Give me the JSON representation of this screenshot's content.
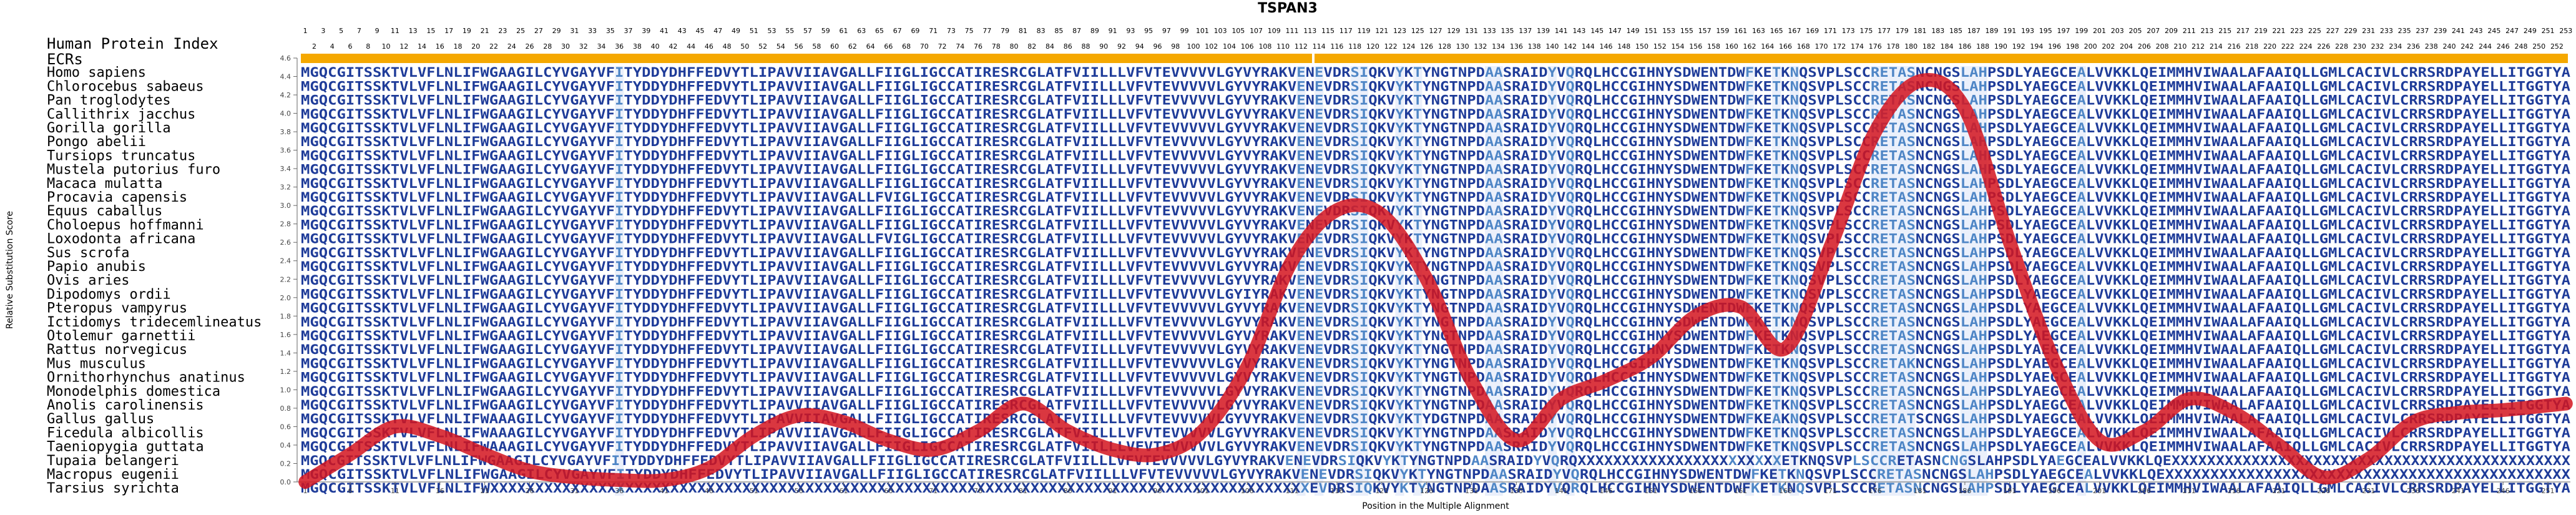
{
  "figure": {
    "title": "TSPAN3",
    "index_label": "Human Protein Index",
    "ecr_label": "ECRs",
    "colors": {
      "conserved": "#1f3c99",
      "variable": "#4f86c6",
      "ecr_bar": "#f5a800",
      "curve": "#d4141e",
      "highlight": "#ffd24d"
    }
  },
  "alignment": {
    "human_index_odd": [
      1,
      3,
      5,
      7,
      9,
      11,
      13,
      15,
      17,
      19,
      21,
      23,
      25,
      27,
      29,
      31,
      33,
      35,
      37,
      39,
      41,
      43,
      45,
      47,
      49,
      51,
      53,
      55,
      57,
      59,
      61,
      63,
      65,
      67,
      69,
      71,
      73,
      75,
      77,
      79,
      81,
      83,
      85,
      87,
      89,
      91,
      93,
      95,
      97,
      99,
      101,
      103,
      105,
      107,
      109,
      111,
      113,
      115,
      117,
      119,
      121,
      123,
      125,
      127,
      129,
      131,
      133,
      135,
      137,
      139,
      141,
      143,
      145,
      147,
      149,
      151,
      153,
      155,
      157,
      159,
      161,
      163,
      165,
      167,
      169,
      171,
      173,
      175,
      177,
      179,
      181,
      183,
      185,
      187,
      189,
      191,
      193,
      195,
      197,
      199,
      201,
      203,
      205,
      207,
      209,
      211,
      213,
      215,
      217,
      219,
      221,
      223,
      225,
      227,
      229,
      231,
      233,
      235,
      237,
      239,
      241,
      243,
      245,
      247,
      249,
      251,
      253
    ],
    "human_index_even": [
      2,
      4,
      6,
      8,
      10,
      12,
      14,
      16,
      18,
      20,
      22,
      24,
      26,
      28,
      30,
      32,
      34,
      36,
      38,
      40,
      42,
      44,
      46,
      48,
      50,
      52,
      54,
      56,
      58,
      60,
      62,
      64,
      66,
      68,
      70,
      72,
      74,
      76,
      78,
      80,
      82,
      84,
      86,
      88,
      90,
      92,
      94,
      96,
      98,
      100,
      102,
      104,
      106,
      108,
      110,
      112,
      114,
      116,
      118,
      120,
      122,
      124,
      126,
      128,
      130,
      132,
      134,
      136,
      138,
      140,
      142,
      144,
      146,
      148,
      150,
      152,
      154,
      156,
      158,
      160,
      162,
      164,
      166,
      168,
      170,
      172,
      174,
      176,
      178,
      180,
      182,
      184,
      186,
      188,
      190,
      192,
      194,
      196,
      198,
      200,
      202,
      204,
      206,
      208,
      210,
      212,
      214,
      216,
      218,
      220,
      222,
      224,
      226,
      228,
      230,
      232,
      234,
      236,
      238,
      240,
      242,
      244,
      246,
      248,
      250,
      252
    ],
    "variable_positions": [
      36,
      112,
      114,
      118,
      119,
      123,
      125,
      133,
      134,
      140,
      142,
      162,
      165,
      167,
      176,
      177,
      178,
      179,
      180,
      186,
      187,
      188,
      199
    ],
    "species": [
      {
        "name": "Homo sapiens",
        "seq": "MGQCGITSSKTVLVFLNLIFWGAAGILCYVGAYVFITYDDYDHFFEDVYTLIPAVVIIAVGALLFIIGLIGCCATIRESRCGLATFVIILLLVFVTEVVVVVLGYVYRAKVENEVDRSIQKVYKTYNGTNPDAASRAIDYVQRQLHCCGIHNYSDWENTDWFKETKNQSVPLSCCRETASNCNGSLAHPSDLYAEGCEALVVKKLQEIMMHVIWAALAFAAIQLLGMLCACIVLCRRSRDPAYELLITGGTYA"
      },
      {
        "name": "Chlorocebus sabaeus",
        "seq": "MGQCGITSSKTVLVFLNLIFWGAAGILCYVGAYVFITYDDYDHFFEDVYTLIPAVVIIAVGALLFIIGLIGCCATIRESRCGLATFVIILLLVFVTEVVVVVLGYVYRAKVENEVDRSIQKVYKTYNGTNPDAASRAIDYVQRQLHCCGIHNYSDWENTDWFKETKNQSVPLSCCRETASNCNGSLAHPSDLYAEGCEALVVKKLQEIMMHVIWAALAFAAIQLLGMLCACIVLCRRSRDPAYELLITGGTYA"
      },
      {
        "name": "Pan troglodytes",
        "seq": "MGQCGITSSKTVLVFLNLIFWGAAGILCYVGAYVFITYDDYDHFFEDVYTLIPAVVIIAVGALLFIIGLIGCCATIRESRCGLATFVIILLLVFVTEVVVVVLGYVYRAKVENEVDRSIQKVYKTYNGTNPDAASRAIDYVQRQLHCCGIHNYSDWENTDWFKETKNQSVPLSCCRETASNCNGSLAHPSDLYAEGCEALVVKKLQEIMMHVIWAALAFAAIQLLGMLCACIVLCRRSRDPAYELLITGGTYA"
      },
      {
        "name": "Callithrix jacchus",
        "seq": "MGQCGITSSKTVLVFLNLIFWGAAGILCYVGAYVFITYDDYDHFFEDVYTLIPAVVIIAVGALLFIIGLIGCCATIRESRCGLATFVIILLLVFVTEVVVVVLGYVYRAKVENEVDRSIQKVYKTYNGTNPDAASRAIDYVQRQLHCCGIHNYSDWENTDWFKETKNQSVPLSCCRETASNCNGSLAHPSDLYAEGCEALVVKKLQEIMMHVIWAALAFAAIQLLGMLCACIVLCRRSRDPAYELLITGGTYA"
      },
      {
        "name": "Gorilla gorilla",
        "seq": "MGQCGITSSKTVLVFLNLIFWGAAGILCYVGAYVFITYDDYDHFFEDVYTLIPAVVIIAVGALLFIIGLIGCCATIRESRCGLATFVIILLLVFVTEVVVVVLGYVYRAKVENEVDRSIQKVYKTYNGTNPDAASRAIDYVQRQLHCCGIHNYSDWENTDWFKETKNQSVPLSCCRETASNCNGSLAHPSDLYAEGCEALVVKKLQEIMMHVIWAALAFAAIQLLGMLCACIVLCRRSRDPAYELLITGGTYA"
      },
      {
        "name": "Pongo abelii",
        "seq": "MGQCGITSSKTVLVFLNLIFWGAAGILCYVGAYVFITYDDYDHFFEDVYTLIPAVVIIAVGALLFIIGLIGCCATIRESRCGLATFVIILLLVFVTEVVVVVLGYVYRAKVENEVDRSIQKVYKTYNGTNPDAASRAIDYVQRQLHCCGIHNYSDWENTDWFKETKNQSVPLSCCRETASNCNGSLAHPSDLYAEGCEALVVKKLQEIMMHVIWAALAFAAIQLLGMLCACIVLCRRSRDPAYELLITGGTYA"
      },
      {
        "name": "Tursiops truncatus",
        "seq": "MGQCGITSSKTVLVFLNLIFWGAAGILCYVGAYVFITYDDYDHFFEDVYTLIPAVVIIAVGALLFIIGLIGCCATIRESRCGLATFVIILLLVFVTEVVVVVLGYVYRAKVENEVDRSIQKVYKTYNGTNPDAASRAIDYVQRQLHCCGIHNYSDWENTDWFKETKNQSVPLSCCRETASNCNGSLAHPSDLYAEGCEALVVKKLQEIMMHVIWAALAFAAIQLLGMLCACIVLCRRSRDPAYELLITGGTYA"
      },
      {
        "name": "Mustela putorius furo",
        "seq": "MGQCGITSSKTVLVFLNLIFWGAAGILCYVGAYVFITYDDYDHFFEDVYTLIPAVVIIAVGALLFIIGLIGCCATIRESRCGLATFVIILLLVFVTEVVVVVLGYVYRAKVENEVDRSIQKVYKTYNGTNPDAASRAIDYVQRQLHCCGIHNYSDWENTDWFKETKNQSVPLSCCRETASNCNGSLAHPSDLYAEGCEALVVKKLQEIMMHVIWAALAFAAIQLLGMLCACIVLCRRSRDPAYELLITGGTYA"
      },
      {
        "name": "Macaca mulatta",
        "seq": "MGQCGITSSKTVLVFLNLIFWGAAGILCYVGAYVFITYDDYDHFFEDVYTLIPAVVIIAVGALLFIIGLIGCCATIRESRCGLATFVIILLLVFVTEVVVVVLGYVYRAKVENEVDRSIQKVYKTYNGTNPDAASRAIDYVQRQLHCCGIHNYSDWENTDWFKETKNQSVPLSCCRETASNCNGSLAHPSDLYAEGCEALVVKKLQEIMMHVIWAALAFAAIQLLGMLCACIVLCRRSRDPAYELLITGGTYA"
      },
      {
        "name": "Procavia capensis",
        "seq": "MGQCGITSSKTVLVFLNLIFWGAAGILCYVGAYVFITYDDYDHFFEDVYTLIPAVVIIAVGALLFVIGLIGCCATIRESRCGLATFVIILLLVFVTEVVVVVLGYVYRAKVENEVDRSIQKVYKTYNGTNPDAASRAIDYVQRQLHCCGIHNYSDWENTDWFKETKNQSVPLSCCRETASNCNGSLAHPSDLYAEGCEALVVKKLQEIMMHVIWAALAFAAIQLLGMLCACIVLCRRSRDPAYELLITGGTYA"
      },
      {
        "name": "Equus caballus",
        "seq": "MGQCGITSSKTVLVFLNLIFWGAAGILCYVGAYVFITYDDYDHFFEDVYTLIPAVVIIAVGALLFIIGLIGCCATIRESRCGLATFVIILLLVFVTEVVVVVLGYVYRAKVENEVDRSIQKVYKTYNGTNPDAASRAIDYVQRQLHCCGIHNYSDWENTDWFKETKNQSVPLSCCRETASNCNGSLAHPSDLYAEGCEALVVKKLQEIMMHVIWAALAFAAIQLLGMLCACIVLCRRSRDPAYELLITGGTYA"
      },
      {
        "name": "Choloepus hoffmanni",
        "seq": "MGQCGITSSKTVLVFLNLIFWGAAGILCYVGAYVFITYDDYDHFFEDVYTLIPAVVIIAVGALLFIIGLIGCCATIRESRCGLATFVIILLLVFVTEVVVVVLGYVYRAKVENEVDRSIQKVYKTYNGTNPDAASRAIDYVQRQLHCCGIHNYSDWENTDWFKETKNQSVPLSCCRETASNCNGSLAHPSDLYAEGCEALVVKKLQEIMMHVIWAALAFAAIQLLGMLCACIVLCRRSRDPAYELLITGGTYA"
      },
      {
        "name": "Loxodonta africana",
        "seq": "MGQCGITSSKTVLVFLNLIFWGAAGILCYVGAYVFITYDDYDHFFEDVYTLIPAVVIIAVGALLFVIGLIGCCATIRESRCGLATFVIILLLVFVTEVVVVVLGYVYRAKVENEVDRSIQKVYKTYNGTNPDAASRAIDYVQRQLHCCGIHNYSDWENTDWFKETKNQSVPLSCCRETASNCNGSLAHPSDLYAEGCEALVVKKLQEIMMHVIWAALAFAAIQLLGMLCACIVLCRRSRDPAYELLITGGTYA"
      },
      {
        "name": "Sus scrofa",
        "seq": "MGQCGITSSKTVLVFLNLIFWGAAGILCYVGAYVFITYDDYDHFFEDVYTLIPAVVIIAVGALLFIIGLIGCCATIRESRCGLATFVIILLLVFVTEVVVVVLGYVYRAKVENEVDRSIQKVYKTYNGTNPDAASRAIDYVQRQLHCCGIHNYSDWENTDWFKETKNQSVPLSCCRETASNCNGSLAHPSDLYAEGCEALVVKKLQEIMMHVIWAALAFAAIQLLGMLCACIVLCRRSRDPAYELLITGGTYA"
      },
      {
        "name": "Papio anubis",
        "seq": "MGQCGITSSKTVLVFLNLIFWGAAGILCYVGAYVFITYDDYDHFFEDVYTLIPAVVIIAVGALLFIIGLIGCCATIRESRCGLATFVIILLLVFVTEVVVVVLGYVYRAKVENEVDRSIQKVYKTYNGTNPDAASRAIDYVQRQLHCCGIHNYSDWENTDWFKETKNQSVPLSCCRETASNCNGSLAHPSDLYAEGCEALVVKKLQEIMMHVIWAALAFAAIQLLGMLCACIVLCRRSRDPAYELLITGGTYA"
      },
      {
        "name": "Ovis aries",
        "seq": "MGQCGITSSKTVLVFLNLIFWGAAGILCYVGAYVFITYDDYDHFFEDVYTLIPAVVIIAVGALLFIIGLIGCCATIRESRCGLATFVIILLLVFVTEVVVVVLGYVYRAKVENEVDRSIQKVYKTYNGTNPDAASRAIDYVQRQLHCCGIHNYSDWENTDWFKETKNQSVPLSCCRETASNCNGSLAHPSDLYAEGCEALVVKKLQEIMMHVIWAALAFAAIQLLGMLCACIVLCRRSRDPAYELLITGGTYA"
      },
      {
        "name": "Dipodomys ordii",
        "seq": "MGQCGITSSKTVLVFLNLIFWGAAGILCYVGAYVFITYDDYDHFFEDVYTLIPAVVIIAVGALLFIIGLIGCCATIRESRCGLATFVIILLLVFVTEVVVVVLGYIYRAKVENEVDRSIQKVYKTYNGTNPDAASRAIDYVQRQLHCCGIHNYSDWENTDWFKETKNQSVPLSCCRETASNCNGSLAHPSDLYAEGCEALVVKKLQEIMMHVIWAALAFAAIQLLGMLCACIVLCRRSRDPAYELLITGGTYA"
      },
      {
        "name": "Pteropus vampyrus",
        "seq": "MGQCGITSSKTVLVFLNLIFWGAAGILCYVGAYVFITYDDYDHFFEDVYTLIPAVVIIAVGALLFIIGLIGCCATIRESRCGLATFVIILLLVFVTEVVVVVLGYVYRAKVENEVDRSIQKVYKTYNGTNPDAASRAIDYVQRQLHCCGIHNYSDWENTDWFKETKNQSVPLSCCRETASNCNGSLAHPSDLYAEGCEALVVKKLQEIMMHVIWAALAFAAIQLLGMLCACIVLCRRSRDPAYELLITGGTYA"
      },
      {
        "name": "Ictidomys tridecemlineatus",
        "seq": "MGQCGITSSKTVLVFLNLIFWGAAGILCYVGAYVFITYDDYDHFFEDVYTLIPAVVIIAVGALLFIIGLIGCCATIRESRCGLATFVIILLLVFVTEVVVVVLGYVYRAKVENEVDRSIQKVYKTYNGTNPDAASRAIDYVQRQLHCCGIHNYSDWENTDWFKETKNQSVPLSCCRETASNCNGSLAHPSDLYAEGCEALVVKKLQEIMMHVIWAALAFAAIQLLGMLCACIVLCRRSRDPAYELLITGGTYA"
      },
      {
        "name": "Otolemur garnettii",
        "seq": "MGQCGITSSKTVLVFLNLIFWGAAGILCYVGAYVFITYDDYDHFFEDVYTLIPAVVIIAVGALLFIIGLIGCCATIRESRCGLATFVIILLLVFVTEVVVVVLGYVYRAKVENEVDRSIQKVYKTYNGTNPDAASRAIDYVQRQLHCCGIHNYSDWENTDWFKETKNQSVPLSCCRETASNCNGSLAHPSDLYAEGCEALVVKKLQEIMMHVIWAALAFAAIQLLGMLCACIVLCRRSRDPAYELLITGGTYA"
      },
      {
        "name": "Rattus norvegicus",
        "seq": "MGQCGITSSKTVLVFLNLIFWGAAGILCYVGAYVFITYDDYDHFFEDVYTLIPAVVIIAVGALLFIIGLIGCCATIRESRCGLATFVIILLLVFVTEVVVVVLGYVYRAKVENEVDRSIQKVYKTYNGTNPDAASRAIDYVQRQLHCCGIHNYSDWENTDWFKETKNQSVPLSCCRETASNCNGSLAHPSDLYAEGCEALVVKKLQEIMMHVIWAALAFAAIQLLGMLCACIVLCRRSRDPAYELLITGGTYA"
      },
      {
        "name": "Mus musculus",
        "seq": "MGQCGITSSKTVLVFLNLIFWGAAGILCYVGAYVFITYDDYDHFFEDVYTLIPAVVIIAVGALLFIIGLIGCCATIRESRCGLATFVIILLLVFVTEVVVVVLGYVYRAKVENEVDRSIQKVYKTYNGTNPDAASRAIDYVQRQLHCCGIHNYSDWENTDWFKETKNQSVPLSCCRETAKNCNGSLAHPSDLYAEGCEALVVKKLQEIMMHVIWAALAFAAIQLLGMLCACIVLCRRSRDPAYELLITGGTYA"
      },
      {
        "name": "Ornithorhynchus anatinus",
        "seq": "MGQCGITSSKTVLVFLNLIFWGAAGILCYVGAYVFITYDDYDHFFEDVYTLIPAVVIIAVGALLFIIGLIGCCATIRESRCGLATFVIILLLVFVTEVVVVVLGYVYRAKVENEVDRSIQKVYKTYNGTNPDAASRAIDYVQRQLHCCGIHNYSDWENTDWFKETKNQSVPLSCCRETASNCNGSLAHPSDLYAEGCEALVVKKLQEIMMHVIWAALAFAAIQLLGMLCACIVLCRRSRDPAYELLITGGTYA"
      },
      {
        "name": "Monodelphis domestica",
        "seq": "MGQCGITSSKTVLVFLNLIFWGAAGILCYVGAYVFITYDDYDHFFEDVYTLIPAVVIIAVGALLFIIGLIGCCATIRESRCGLATFVIILLLVFVTEVVVVVLGYVYRAKVENEVDRSIQKVYKTYNGTNPDAASRAIDYVQRQLHCCGIHNYSDWENTDWFKETKNQSVPLSCCRETASNCNGSLAHPSDLYAEGCEALVVKKLQEIMMHVIWAALAFAAIQLLGMLCACIVLCRRSRDPAYELLITGGTYA"
      },
      {
        "name": "Anolis carolinensis",
        "seq": "MGQCGITSSKTVLVFLNLIFWGAAGILCYVGAYVFITYDDYDHFFEDVYTLIPAVVIIAVGALLFIIGLIGCCATIRESRCGLATFVIILLLVFVTEVVVVVLGYVYRAKVENEVDRSIQKVYKTYNGTNPDAASRAIDYVQRQLHCCGIHNYSDWENTDWFKETKNQSVPLSCCRETASNCNGSLAHPSDLYAEGCEALVVKKLQEIMMHVIWAALAFAAIQLLGMLCACIVLCRRSRDPAYELLITGGTYA"
      },
      {
        "name": "Gallus gallus",
        "seq": "MGQCGITSSKTVLVFLNLIFWAAAGILCYVGAYVFITYDDYDHFFEDVYTLIPAVVIIAVGALLFIIGLIGCCATIRESRCGLATFVIILLLVFVTEVVVVVLGYVYRAKVENEVDRSIQKVYKTYDGTNPDAASRAIDYVQRQLHCCGIHNYSDWENTDWFKEAKNQSVPLSCCRETATSCNGSLAHPSDLYAEGCEALVVKKLQEIMMHVIWAALAFAAIQLLGMLCACIVLCRRSRDPAYELLITGGTYA"
      },
      {
        "name": "Ficedula albicollis",
        "seq": "MGQCGITSSKTVLVFLNLIFWAAAGILCYVGAYVFITYDDYDHFFEDVYTLIPAVVIIAVGALLFIIGLIGCCATIRESRCGLATFVIILLLVFVTEVVVVVLGYVYRAKVENEVDRSIQKVYKTYNGTNPDAASRAIDYVQRQLHCCGIHNYSDWENTDWFKETKNQSVPLSCCRETASNCNGSLAHPSDLYAEGCEALVVKKLQEIMMHVIWAALAFAAIQLLGMLCACIVLCRRSRDPAYELLITGGTYA"
      },
      {
        "name": "Taeniopygia guttata",
        "seq": "MGQCGITSSKTVLVFLNLIFWAAAGILCYVGAYVFITYDDYDHFFEDVYTLIPAVVIIAVGALLFIIGLIGCCATIRESRCGLATFVIILLLVFVTEVVVVVLGYVYRAKVENEVDRSIQKVYKTYNGTNPDAASRAIDYVQRQLHCCGIHNYSDWENTDWFKETKNQSVPLSCCRETASNCNGSLAHPSDLYAEGCEALVVKKLQEIMMHVIWAALAFAAIQLLGMLCACIVLCRRSRDPAYELLITGGTYA"
      },
      {
        "name": "Tupaia belangeri",
        "seq": "MGQCGITSSKTVLVFLNLIFWGAAGILCYVGAYVFITYDDYDHFFEDVYTLIPAVVIIAVGALLFIIGLIGCCATIRESRCGLATFVIILLLVFVTEVVVVVLGYVYRAKVENEVDRSIQKVYKTYNGTNPDAASRAIDYVQRQXXXXXXXXXXXXXXXXXXXXXXXETKNQSVPLSCCRETASNCNGSLAHPSDLYAEGCEALVVKKLQEXXXXXXXXXXXXXXXXXXXXXXXXXXXXXXXXXXXXXXXXXXXXX"
      },
      {
        "name": "Macropus eugenii",
        "seq": "MGQCGITSSKTVLVFLNLIFWGAAGILCYVGAYVFITYDDYDHFFEDVYTLIPAVVIIAVGALLFIIGLIGCCATIRESRCGLATFVIILLLVFVTEVVVVVLGYVYRAKVENEVDRSIQKVYKTYNGTNPDAASRAIDYVQRQLHCCGIHNYSDWENTDWFKETKNQSVPLSCCRETASNCNGSLAHPSDLYAEGCEALVVKKLQEXXXXXXXXXXXXXXXXXXXXXXXXXXXXXXXXXXXXXXXXXXXXX"
      },
      {
        "name": "Tarsius syrichta",
        "seq": "MGQCGITSSKTVLVFLNLIFWXXXXXXXXXXXXXXXXXXXXXXXXXXXXXXXXXXXXXXXXXXXXXXXXXXXXXXXXXXXXXXXXXXXXXXXXXXXXXXXXXXXXXXXXXXXEVDRSIQKVYKTYNGTNPDAASRAIDYVQRQLHCCGIHNYSDWENTDWFKETKNQSVPLSCCRETASNCNGSLAHPSDLYAEGCEALVVKKLQEIMMHVIWAALAFAAIQLLGMLCACIVLCRRSRDPAYELLITGGTYA"
      }
    ]
  },
  "chart_data": {
    "type": "line",
    "title": "TSPAN3",
    "xlabel": "Position in the Multiple Alignment",
    "ylabel": "Relative Substitution Score",
    "xlim": [
      1,
      253
    ],
    "ylim": [
      0,
      4.6
    ],
    "x_ticks": [
      1,
      6,
      11,
      16,
      21,
      26,
      31,
      36,
      41,
      46,
      51,
      56,
      61,
      66,
      71,
      76,
      81,
      86,
      91,
      96,
      101,
      106,
      111,
      116,
      121,
      126,
      131,
      136,
      141,
      146,
      151,
      156,
      161,
      166,
      171,
      176,
      181,
      186,
      191,
      196,
      201,
      206,
      211,
      216,
      221,
      226,
      231,
      236,
      241,
      246,
      251
    ],
    "y_ticks": [
      0.0,
      0.2,
      0.4,
      0.6,
      0.8,
      1.0,
      1.2,
      1.4,
      1.6,
      1.8,
      2.0,
      2.2,
      2.4,
      2.6,
      2.8,
      3.0,
      3.2,
      3.4,
      3.6,
      3.8,
      4.0,
      4.2,
      4.4,
      4.6
    ],
    "y_tick_labels": [
      "0.0",
      "0.2",
      "0.4",
      "0.6",
      "0.8",
      "1.0",
      "1.2",
      "1.4",
      "1.6",
      "1.8",
      "2.0",
      "2.2",
      "2.4",
      "2.6",
      "2.8",
      "3.0",
      "3.2",
      "3.4",
      "3.6",
      "3.8",
      "4.0",
      "4.2",
      "4.4",
      "4.6"
    ],
    "ecr_regions": [
      [
        1,
        113
      ],
      [
        114,
        253
      ]
    ],
    "series": [
      {
        "x": [
          1,
          6,
          11,
          16,
          21,
          26,
          31,
          36,
          41,
          46,
          51,
          56,
          61,
          66,
          71,
          76,
          81,
          86,
          91,
          96,
          101,
          106,
          111,
          116,
          121,
          126,
          131,
          136,
          141,
          146,
          151,
          156,
          161,
          166,
          171,
          176,
          181,
          186,
          191,
          196,
          201,
          206,
          211,
          216,
          221,
          226,
          231,
          236,
          241,
          246,
          253
        ],
        "values": [
          0.0,
          0.3,
          0.6,
          0.5,
          0.3,
          0.12,
          0.05,
          0.02,
          0.02,
          0.15,
          0.5,
          0.72,
          0.65,
          0.45,
          0.35,
          0.55,
          0.85,
          0.55,
          0.35,
          0.3,
          0.55,
          1.25,
          2.4,
          2.95,
          2.9,
          2.2,
          1.1,
          0.45,
          0.9,
          1.1,
          1.35,
          1.8,
          1.9,
          1.45,
          2.55,
          3.8,
          4.35,
          4.05,
          2.6,
          1.3,
          0.45,
          0.55,
          0.9,
          0.75,
          0.4,
          0.05,
          0.25,
          0.65,
          0.75,
          0.78,
          0.85
        ]
      }
    ]
  }
}
